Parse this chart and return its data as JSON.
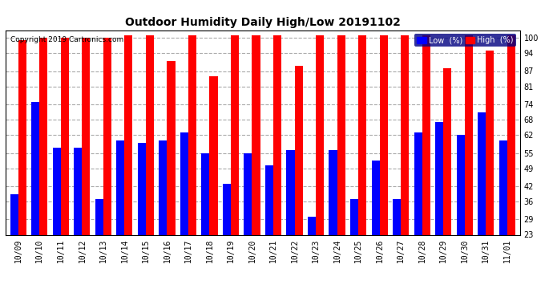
{
  "title": "Outdoor Humidity Daily High/Low 20191102",
  "copyright": "Copyright 2019 Cartronics.com",
  "categories": [
    "10/09",
    "10/10",
    "10/11",
    "10/12",
    "10/13",
    "10/14",
    "10/15",
    "10/16",
    "10/17",
    "10/18",
    "10/19",
    "10/20",
    "10/21",
    "10/22",
    "10/23",
    "10/24",
    "10/25",
    "10/26",
    "10/27",
    "10/28",
    "10/29",
    "10/30",
    "10/31",
    "11/01"
  ],
  "high_values": [
    99,
    100,
    100,
    100,
    100,
    101,
    101,
    91,
    101,
    85,
    101,
    101,
    101,
    89,
    101,
    101,
    101,
    101,
    101,
    101,
    88,
    101,
    95,
    101
  ],
  "low_values": [
    39,
    75,
    57,
    57,
    37,
    60,
    59,
    60,
    63,
    55,
    43,
    55,
    50,
    56,
    30,
    56,
    37,
    52,
    37,
    63,
    67,
    62,
    71,
    60
  ],
  "high_color": "#FF0000",
  "low_color": "#0000FF",
  "bg_color": "#FFFFFF",
  "yticks": [
    23,
    29,
    36,
    42,
    49,
    55,
    62,
    68,
    74,
    81,
    87,
    94,
    100
  ],
  "ymin": 23,
  "ymax": 103,
  "grid_color": "#AAAAAA",
  "legend_low_label": "Low  (%)",
  "legend_high_label": "High  (%)",
  "bar_width": 0.38
}
